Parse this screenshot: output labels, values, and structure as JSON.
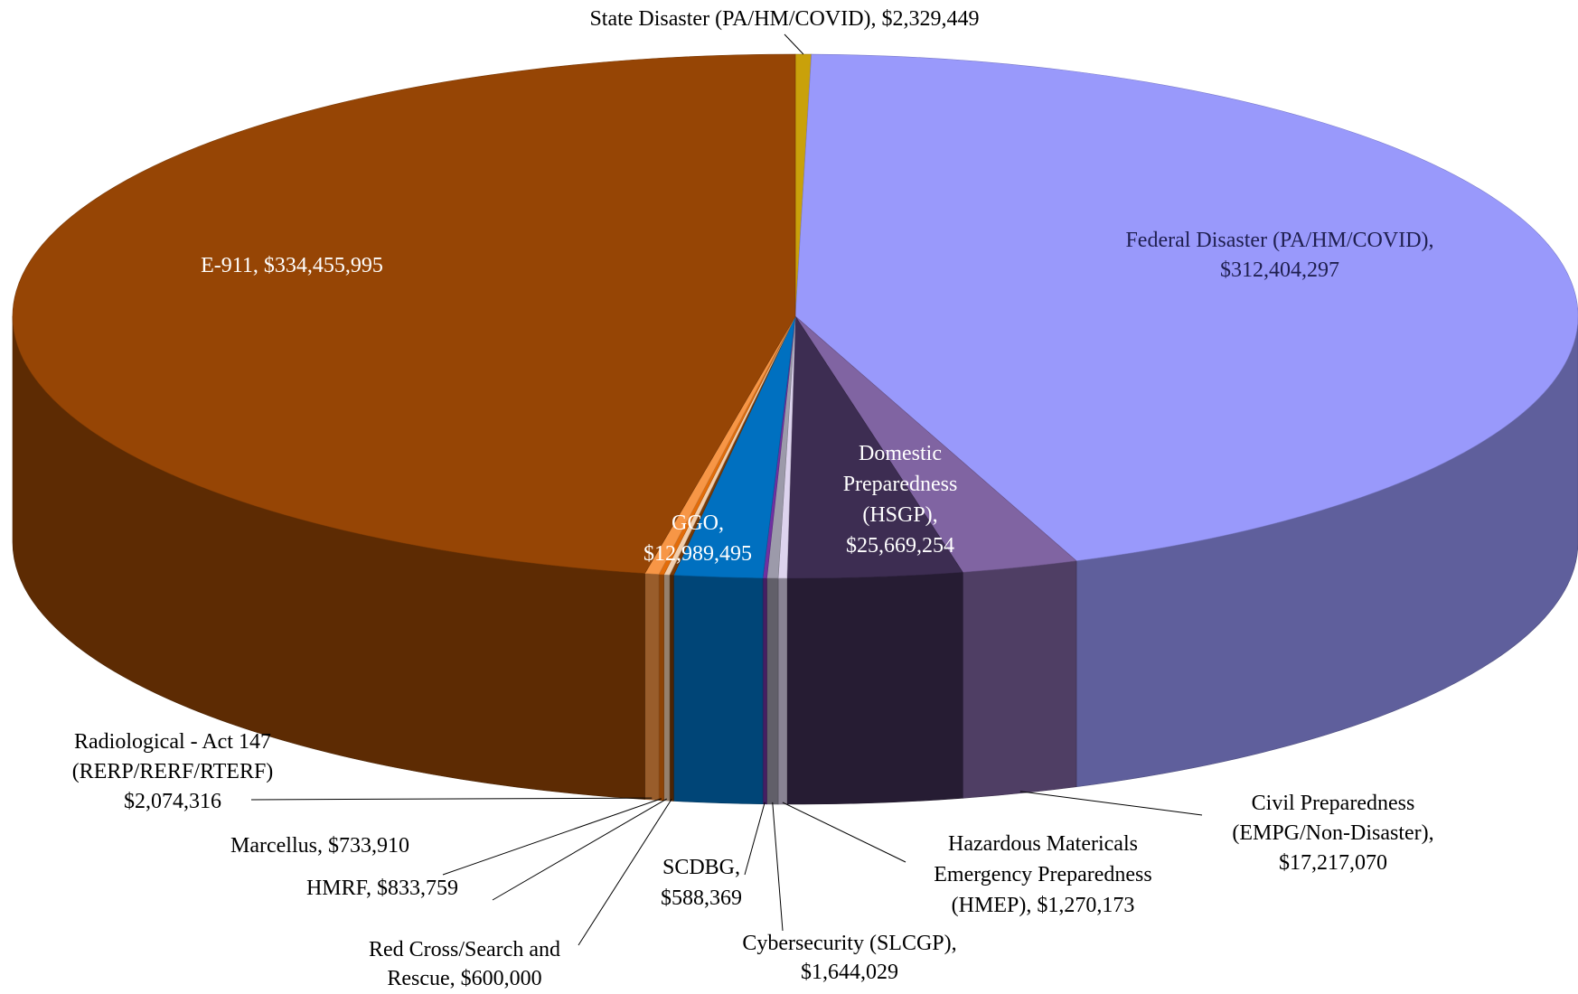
{
  "chart_data": {
    "type": "pie3d",
    "values": [
      2329449,
      312404297,
      17217070,
      25669254,
      1270173,
      1644029,
      588369,
      12989495,
      600000,
      833759,
      733910,
      2074316,
      334455995
    ],
    "labels": [
      [
        "State Disaster (PA/HM/COVID), $2,329,449"
      ],
      [
        "Federal Disaster (PA/HM/COVID),",
        "$312,404,297"
      ],
      [
        "Civil Preparedness",
        "(EMPG/Non-Disaster),",
        "$17,217,070"
      ],
      [
        "Domestic",
        "Preparedness",
        "(HSGP),",
        "$25,669,254"
      ],
      [
        "Hazardous Matericals",
        "Emergency Preparedness",
        "(HMEP), $1,270,173"
      ],
      [
        "Cybersecurity (SLCGP),",
        "$1,644,029"
      ],
      [
        "SCDBG,",
        "$588,369"
      ],
      [
        "GGO,",
        "$12,989,495"
      ],
      [
        "Red Cross/Search and",
        "Rescue, $600,000"
      ],
      [
        "HMRF, $833,759"
      ],
      [
        "Marcellus, $733,910"
      ],
      [
        "Radiological - Act 147",
        "(RERP/RERF/RTERF)",
        "$2,074,316"
      ],
      [
        "E-911, $334,455,995"
      ]
    ],
    "colors": [
      "#c9a10a",
      "#9999fb",
      "#8064a2",
      "#3d2d52",
      "#ddd3ee",
      "#9c9aaa",
      "#7030a0",
      "#0070c0",
      "#7a3a06",
      "#f2cfae",
      "#e36c09",
      "#f79646",
      "#964505"
    ]
  }
}
